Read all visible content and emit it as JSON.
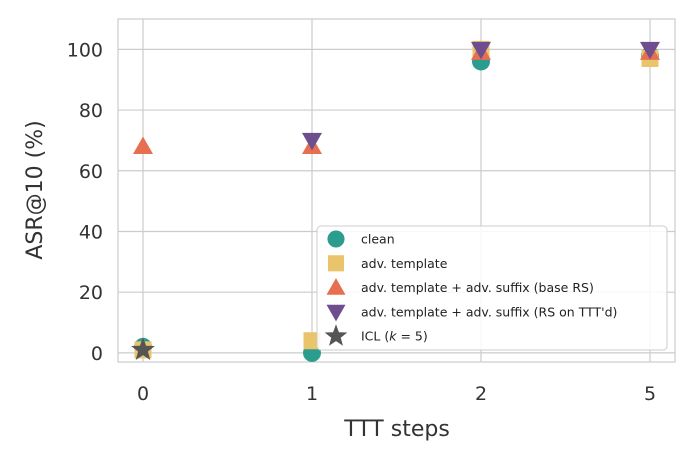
{
  "chart_data": {
    "type": "scatter",
    "xlabel": "TTT steps",
    "ylabel": "ASR@10 (%)",
    "x_ticks": [
      "0",
      "1",
      "2",
      "5"
    ],
    "y_ticks": [
      "0",
      "20",
      "40",
      "60",
      "80",
      "100"
    ],
    "ylim": [
      -3,
      110
    ],
    "x_is_categorical": true,
    "grid": true,
    "legend_position": "lower-right",
    "series": [
      {
        "name": "clean",
        "marker": "circle",
        "color": "#2a9d8f",
        "points": [
          {
            "x": "0",
            "y": 2
          },
          {
            "x": "1",
            "y": 0
          },
          {
            "x": "2",
            "y": 96
          },
          {
            "x": "5",
            "y": 98
          }
        ]
      },
      {
        "name": "adv. template",
        "marker": "square",
        "color": "#e9c46a",
        "points": [
          {
            "x": "0",
            "y": 1
          },
          {
            "x": "1",
            "y": 4
          },
          {
            "x": "2",
            "y": 100
          },
          {
            "x": "5",
            "y": 97
          }
        ]
      },
      {
        "name": "adv. template + adv. suffix (base RS)",
        "marker": "triangle-up",
        "color": "#e76f51",
        "points": [
          {
            "x": "0",
            "y": 68
          },
          {
            "x": "1",
            "y": 68
          },
          {
            "x": "2",
            "y": 99
          },
          {
            "x": "5",
            "y": 99
          }
        ]
      },
      {
        "name": "adv. template + adv. suffix (RS on TTT'd)",
        "marker": "triangle-down",
        "color": "#6f4e8f",
        "points": [
          {
            "x": "1",
            "y": 70
          },
          {
            "x": "2",
            "y": 100
          },
          {
            "x": "5",
            "y": 100
          }
        ]
      },
      {
        "name_prefix": "ICL (",
        "name_math": "k",
        "name_suffix": " = 5)",
        "marker": "star",
        "color": "#555555",
        "points": [
          {
            "x": "0",
            "y": 1
          }
        ]
      }
    ]
  }
}
